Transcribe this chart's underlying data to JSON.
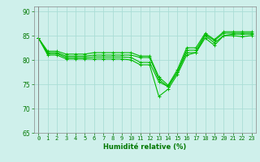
{
  "xlabel": "Humidité relative (%)",
  "bg_color": "#cff0eb",
  "grid_color": "#aaddd6",
  "line_color": "#00bb00",
  "xlim": [
    -0.5,
    23.5
  ],
  "ylim": [
    65,
    91
  ],
  "yticks": [
    65,
    70,
    75,
    80,
    85,
    90
  ],
  "xticks": [
    0,
    1,
    2,
    3,
    4,
    5,
    6,
    7,
    8,
    9,
    10,
    11,
    12,
    13,
    14,
    15,
    16,
    17,
    18,
    19,
    20,
    21,
    22,
    23
  ],
  "series": [
    [
      84.5,
      81.0,
      81.0,
      80.2,
      80.2,
      80.2,
      80.2,
      80.2,
      80.2,
      80.2,
      80.0,
      79.0,
      79.0,
      72.5,
      74.0,
      77.0,
      81.0,
      81.5,
      84.5,
      83.0,
      85.0,
      85.0,
      84.8,
      85.0
    ],
    [
      84.5,
      81.3,
      81.3,
      80.5,
      80.5,
      80.5,
      80.6,
      80.6,
      80.6,
      80.6,
      80.5,
      79.5,
      79.5,
      75.5,
      74.5,
      77.5,
      81.5,
      81.5,
      85.0,
      83.5,
      85.0,
      85.3,
      85.3,
      85.3
    ],
    [
      84.5,
      81.5,
      81.5,
      80.8,
      80.8,
      80.8,
      81.0,
      81.0,
      81.0,
      81.0,
      81.0,
      80.5,
      80.5,
      76.0,
      74.5,
      77.5,
      82.0,
      82.0,
      85.2,
      84.0,
      85.5,
      85.5,
      85.5,
      85.5
    ],
    [
      84.5,
      81.8,
      81.8,
      81.2,
      81.2,
      81.2,
      81.5,
      81.5,
      81.5,
      81.5,
      81.5,
      80.8,
      80.8,
      76.5,
      74.8,
      78.0,
      82.5,
      82.5,
      85.5,
      84.2,
      85.8,
      85.8,
      85.8,
      85.8
    ]
  ],
  "tick_fontsize": 5.0,
  "xlabel_fontsize": 6.0,
  "tick_color": "#007700",
  "xlabel_color": "#007700"
}
